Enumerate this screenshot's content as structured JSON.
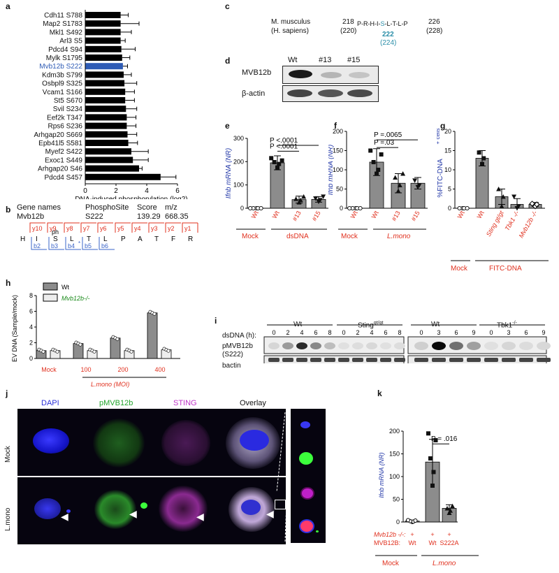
{
  "panel_labels": {
    "a": "a",
    "b": "b",
    "c": "c",
    "d": "d",
    "e": "e",
    "f": "f",
    "g": "g",
    "h": "h",
    "i": "i",
    "j": "j",
    "k": "k"
  },
  "colors": {
    "bar_black": "#000000",
    "bar_highlight": "#2e5bb5",
    "bar_gray": "#8c8c8c",
    "red_label": "#e0301e",
    "blue_label": "#2338a8",
    "teal": "#2a8ea8"
  },
  "panel_a": {
    "xlabel": "DNA-induced phosphorylation (log2)",
    "xticks": [
      "0",
      "2",
      "4",
      "6"
    ],
    "highlight": "Mvb12b S222"
  },
  "panel_b": {
    "headers": [
      "Gene names",
      "PhosphoSite",
      "Score",
      "m/z"
    ],
    "values": [
      "Mvb12b",
      "S222",
      "139.29",
      "668.35"
    ],
    "ph": "ph",
    "top_ions": [
      "y10",
      "y9",
      "y8",
      "y7",
      "y6",
      "y5",
      "y4",
      "y3",
      "y2",
      "y1"
    ],
    "residues": [
      "H",
      "I",
      "S",
      "L",
      "T",
      "L",
      "P",
      "A",
      "T",
      "F",
      "R"
    ],
    "bottom_ions": [
      "b2",
      "b3",
      "b4",
      "b5",
      "b6"
    ]
  },
  "panel_c": {
    "species": "M. musculus",
    "species2": "(H. sapiens)",
    "start": "218",
    "start2": "(220)",
    "seq_left": "P-R-H-I-",
    "site": "S",
    "seq_right": "-L-T-L-P",
    "end": "226",
    "end2": "(228)",
    "pos": "222",
    "pos2": "(224)"
  },
  "panel_d": {
    "lanes": [
      "Wt",
      "#13",
      "#15"
    ],
    "rows": [
      "MVB12b",
      "β-actin"
    ]
  },
  "panel_e": {
    "ylabel": "Ifnb mRNA (NR)",
    "pvals": [
      "P <.0001",
      "P <.0001"
    ],
    "groups": [
      "Mock",
      "dsDNA"
    ]
  },
  "panel_f": {
    "ylabel": "Ifnb mRNA (NR)",
    "pvals": [
      "P =.0065",
      "P =.03"
    ],
    "groups": [
      "Mock",
      "L.mono"
    ]
  },
  "panel_g": {
    "ylabel": "%FITC-DNA",
    "ylabel_sup": "+ cells",
    "groups": [
      "Mock",
      "FITC-DNA"
    ],
    "categories": [
      "Wt",
      "Wt",
      "Sting gt/gt",
      "Tbk1 -/-",
      "Mvb12b -/-"
    ]
  },
  "panel_h": {
    "ylabel": "EV DNA (Sample/mock)",
    "legend": [
      "Wt",
      "Mvb12b-/-"
    ],
    "xlabels": [
      "Mock",
      "100",
      "200",
      "400"
    ],
    "group": "L.mono (MOI)"
  },
  "panel_i": {
    "treatment": "dsDNA (h):",
    "blocks": [
      "Wt",
      "Sting",
      "Wt",
      "Tbk1"
    ],
    "sting_sup": "gt/gt",
    "tbk1_sup": "-/-",
    "times_left": [
      "0",
      "2",
      "4",
      "6",
      "8",
      "0",
      "2",
      "4",
      "6",
      "8"
    ],
    "times_right": [
      "0",
      "3",
      "6",
      "9",
      "0",
      "3",
      "6",
      "9"
    ],
    "rows": [
      "pMVB12b",
      "(S222)",
      "bactin"
    ]
  },
  "panel_j": {
    "columns": [
      "DAPI",
      "pMVB12b",
      "STING",
      "Overlay"
    ],
    "rows": [
      "Mock",
      "L.mono"
    ]
  },
  "panel_k": {
    "ylabel": "Ifnb mRNA (NR)",
    "pval": "P = .016",
    "row1_label": "Mvb12b -/-:",
    "row2_label": "MVB12B:",
    "plus": "+",
    "row2_vals": [
      "Wt",
      "Wt",
      "S222A"
    ],
    "groups": [
      "Mock",
      "L.mono"
    ]
  },
  "chart_data": [
    {
      "type": "bar",
      "title": "",
      "xlabel": "DNA-induced phosphorylation (log2)",
      "categories": [
        "Cdh11 S788",
        "Map2 S1783",
        "Mkl1 S492",
        "Arl3 S5",
        "Pdcd4 S94",
        "Mylk S1795",
        "Mvb12b S222",
        "Kdm3b S799",
        "Osbpl9 S325",
        "Vcam1 S166",
        "St5 S670",
        "Svil S234",
        "Eef2k T347",
        "Rps6 S236",
        "Arhgap20 S669",
        "Epb41l5 S581",
        "Myef2 S422",
        "Exoc1 S449",
        "Arhgap20 S46",
        "Pdcd4 S457"
      ],
      "values": [
        2.3,
        2.3,
        2.3,
        2.3,
        2.35,
        2.4,
        2.45,
        2.5,
        2.55,
        2.6,
        2.6,
        2.65,
        2.7,
        2.7,
        2.75,
        2.8,
        3.0,
        3.1,
        3.5,
        4.9
      ],
      "errors": [
        0.5,
        1.2,
        0.7,
        0.3,
        0.9,
        0.5,
        0.3,
        0.5,
        0.8,
        0.6,
        0.6,
        0.7,
        0.6,
        0.6,
        0.6,
        0.6,
        1.1,
        1.0,
        0.2,
        1.0
      ],
      "xlim": [
        0,
        6
      ]
    },
    {
      "type": "bar",
      "title": "",
      "ylabel": "Ifnb mRNA (NR)",
      "ylim": [
        0,
        300
      ],
      "categories": [
        "Wt",
        "Wt",
        "#13",
        "#15"
      ],
      "values": [
        0,
        195,
        37,
        38
      ],
      "errors": [
        2,
        30,
        15,
        12
      ]
    },
    {
      "type": "bar",
      "title": "",
      "ylabel": "Ifnb mRNA (NR)",
      "ylim": [
        0,
        200
      ],
      "categories": [
        "Wt",
        "Wt",
        "#13",
        "#15"
      ],
      "values": [
        0,
        120,
        65,
        65
      ],
      "errors": [
        2,
        35,
        25,
        15
      ]
    },
    {
      "type": "bar",
      "title": "",
      "ylabel": "%FITC-DNA + cells",
      "ylim": [
        0,
        20
      ],
      "categories": [
        "Wt",
        "Wt",
        "Sting gt/gt",
        "Tbk1 -/-",
        "Mvb12b -/-"
      ],
      "values": [
        0,
        13,
        3,
        1,
        1
      ],
      "errors": [
        0.2,
        2,
        2,
        1.5,
        0.5
      ]
    },
    {
      "type": "bar",
      "title": "",
      "ylabel": "EV DNA (Sample/mock)",
      "ylim": [
        0,
        8
      ],
      "categories": [
        "Mock",
        "100",
        "200",
        "400"
      ],
      "series": [
        {
          "name": "Wt",
          "values": [
            1.0,
            1.9,
            2.6,
            5.8
          ]
        },
        {
          "name": "Mvb12b-/-",
          "values": [
            1.0,
            1.0,
            1.0,
            1.1
          ]
        }
      ]
    },
    {
      "type": "bar",
      "title": "",
      "ylabel": "Ifnb mRNA (NR)",
      "ylim": [
        0,
        200
      ],
      "categories": [
        "Wt",
        "Wt",
        "S222A"
      ],
      "values": [
        2,
        132,
        30
      ],
      "errors": [
        2,
        50,
        8
      ]
    }
  ]
}
